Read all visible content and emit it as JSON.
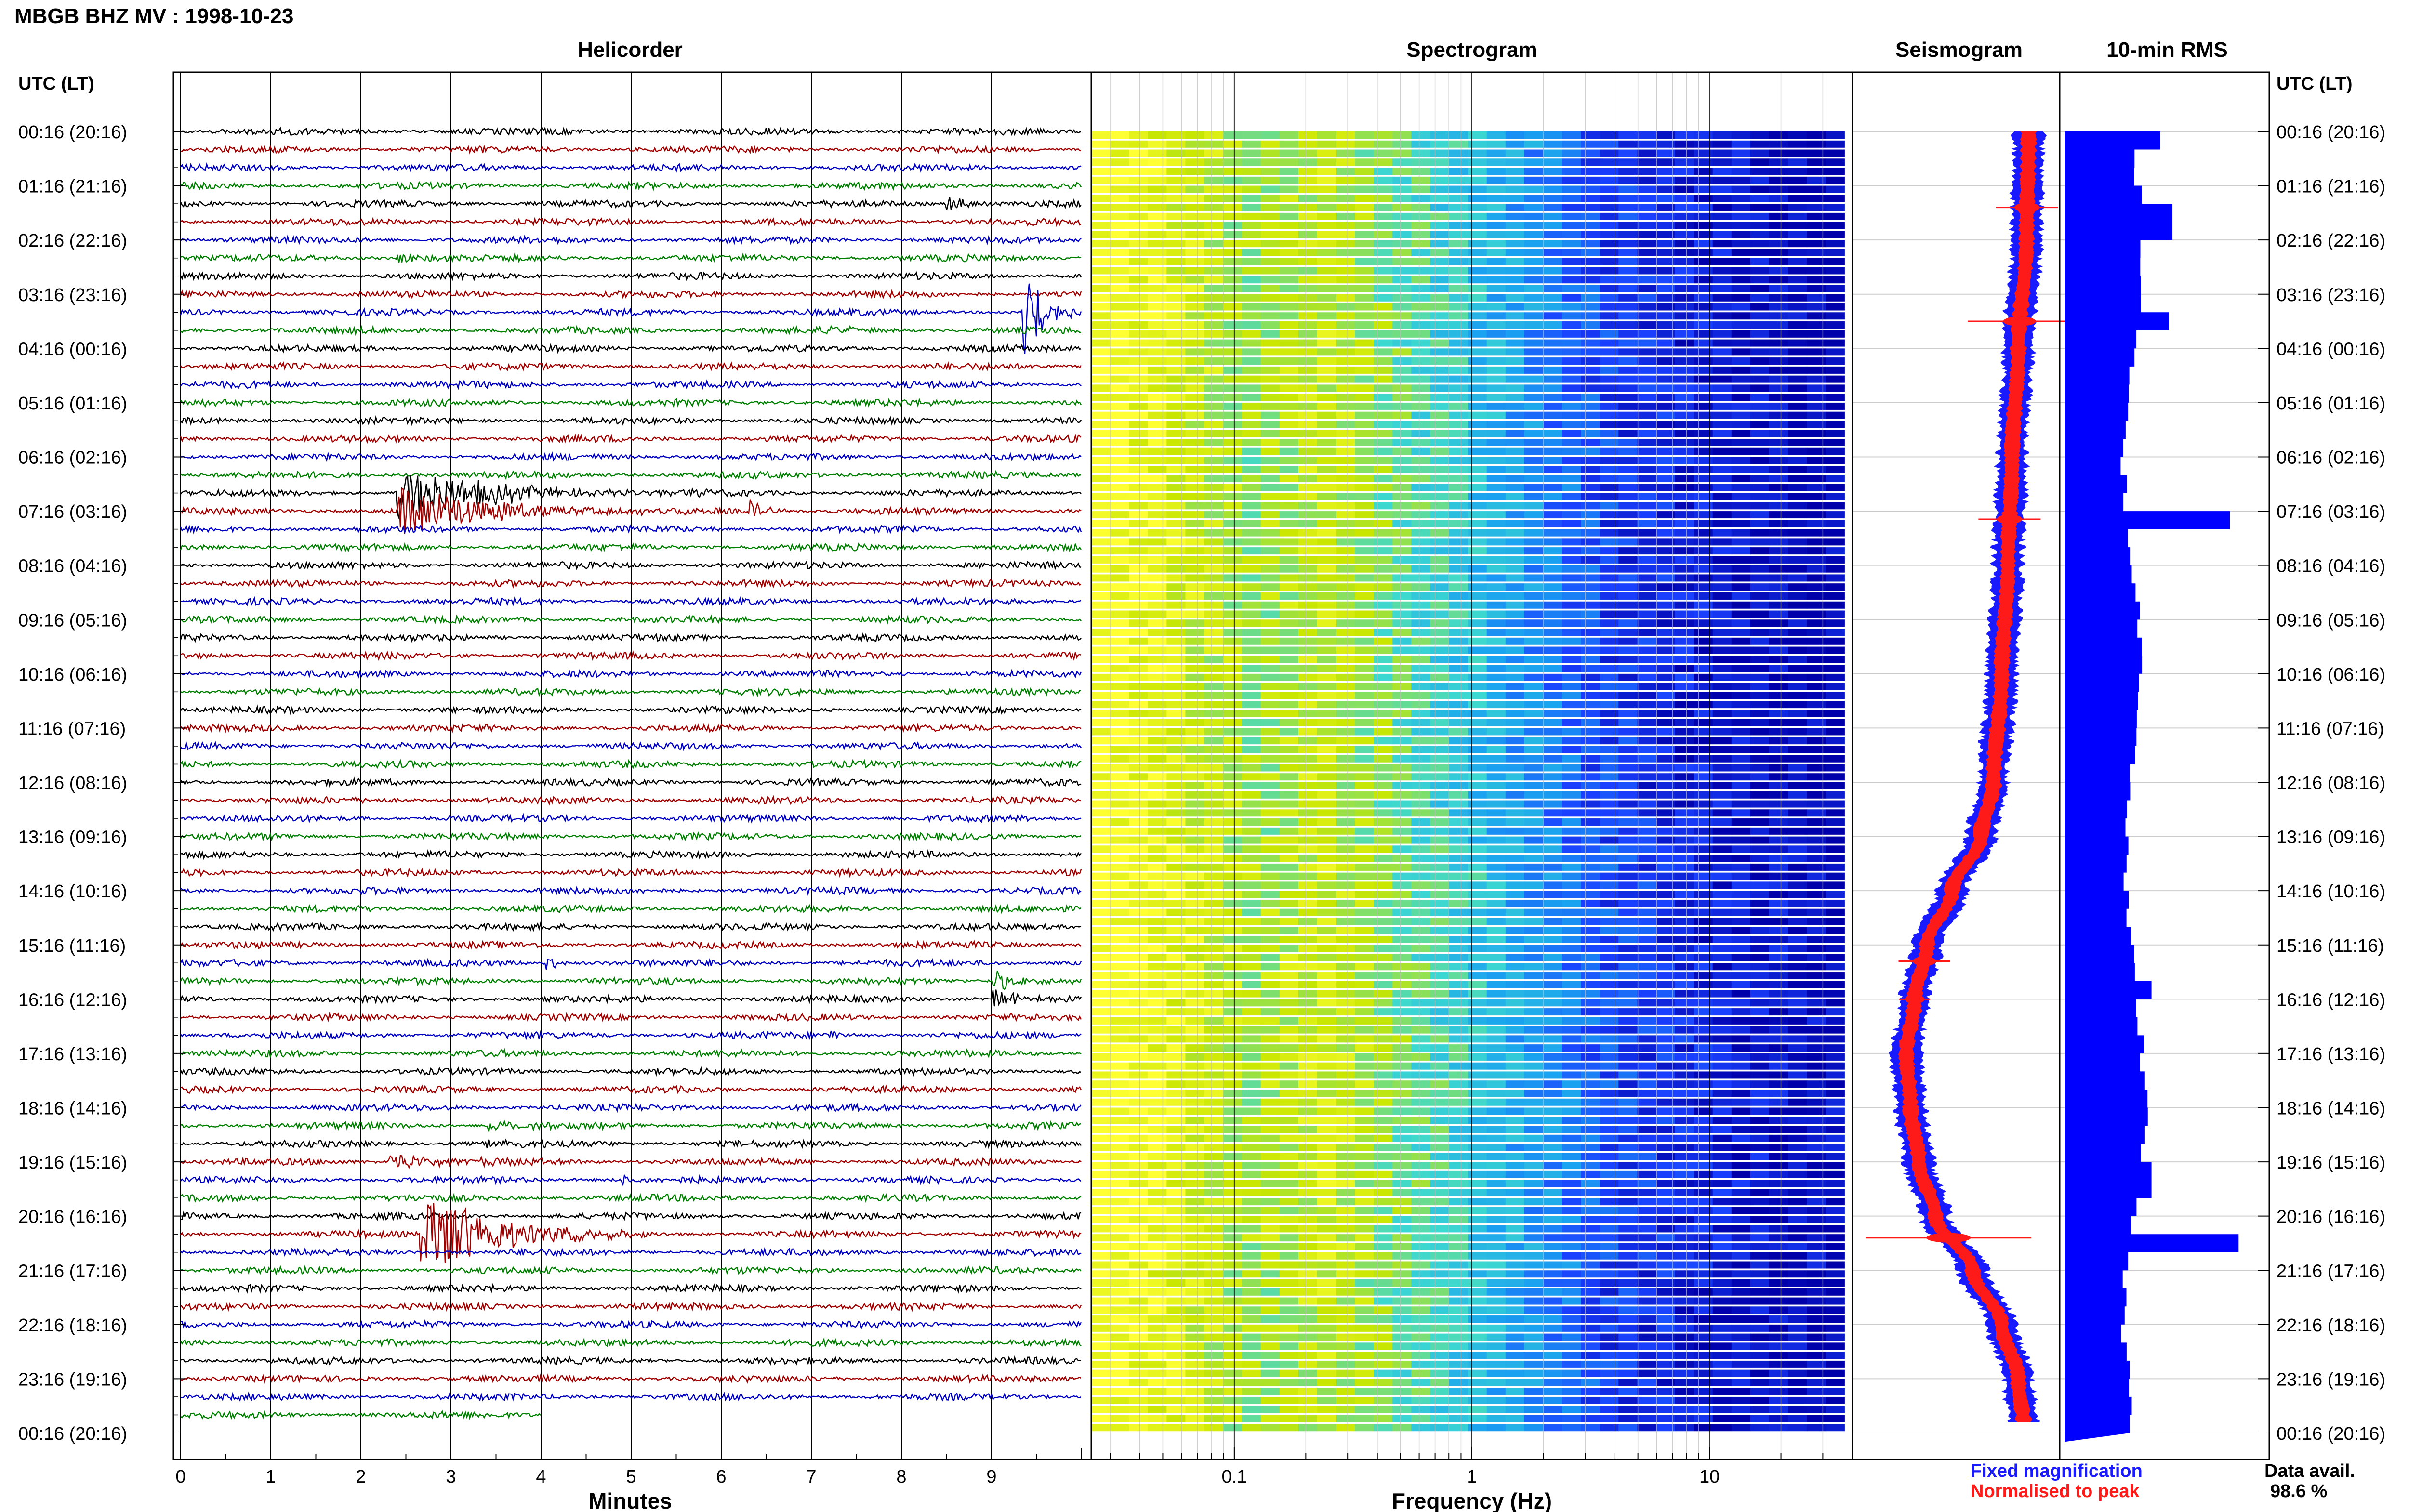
{
  "chart_data": {
    "type": "helicorder",
    "title": "MBGB BHZ MV : 1998-10-23",
    "time_axis_label": "UTC (LT)",
    "time_labels": [
      "00:16 (20:16)",
      "01:16 (21:16)",
      "02:16 (22:16)",
      "03:16 (23:16)",
      "04:16 (00:16)",
      "05:16 (01:16)",
      "06:16 (02:16)",
      "07:16 (03:16)",
      "08:16 (04:16)",
      "09:16 (05:16)",
      "10:16 (06:16)",
      "11:16 (07:16)",
      "12:16 (08:16)",
      "13:16 (09:16)",
      "14:16 (10:16)",
      "15:16 (11:16)",
      "16:16 (12:16)",
      "17:16 (13:16)",
      "18:16 (14:16)",
      "19:16 (15:16)",
      "20:16 (16:16)",
      "21:16 (17:16)",
      "22:16 (18:16)",
      "23:16 (19:16)",
      "00:16 (20:16)"
    ],
    "panels": {
      "helicorder": {
        "title": "Helicorder",
        "xlabel": "Minutes",
        "xticks": [
          0,
          1,
          2,
          3,
          4,
          5,
          6,
          7,
          8,
          9
        ],
        "xlim": [
          0,
          10
        ],
        "trace_colors": [
          "#000000",
          "#a00000",
          "#0000c0",
          "#008000"
        ],
        "events": [
          {
            "hour": 1.45,
            "minute": 8.5,
            "amp": 0.5,
            "dur": 0.7,
            "color": "#a00000"
          },
          {
            "hour": 2.45,
            "minute": 2.4,
            "amp": 0.35,
            "dur": 1.0,
            "color": "#008000"
          },
          {
            "hour": 3.3,
            "minute": 9.35,
            "amp": 2.8,
            "dur": 0.7,
            "color": "#000000"
          },
          {
            "hour": 3.67,
            "minute": 7.2,
            "amp": 0.3,
            "dur": 0.5,
            "color": "#0000c0"
          },
          {
            "hour": 6.83,
            "minute": 2.4,
            "amp": 1.3,
            "dur": 3.6,
            "color": "#a00000"
          },
          {
            "hour": 7.15,
            "minute": 6.3,
            "amp": 0.6,
            "dur": 0.6,
            "color": "#008000"
          },
          {
            "hour": 15.33,
            "minute": 4.05,
            "amp": 1.0,
            "dur": 0.3,
            "color": "#000000"
          },
          {
            "hour": 15.83,
            "minute": 9.0,
            "amp": 0.7,
            "dur": 0.8,
            "color": "#008000"
          },
          {
            "hour": 16.67,
            "minute": 7.2,
            "amp": 0.3,
            "dur": 0.4,
            "color": "#0000c0"
          },
          {
            "hour": 18.5,
            "minute": 3.4,
            "amp": 0.3,
            "dur": 1.5,
            "color": "#0000c0"
          },
          {
            "hour": 19.0,
            "minute": 2.3,
            "amp": 0.5,
            "dur": 2.0,
            "color": "#008000"
          },
          {
            "hour": 19.17,
            "minute": 4.9,
            "amp": 0.7,
            "dur": 0.2,
            "color": "#000000"
          },
          {
            "hour": 20.17,
            "minute": 2.65,
            "amp": 2.5,
            "dur": 2.6,
            "color": "#0000c0"
          }
        ],
        "last_row_end_minute": 4.0
      },
      "spectrogram": {
        "title": "Spectrogram",
        "xlabel": "Frequency (Hz)",
        "xscale": "log",
        "xlim": [
          0.025,
          40
        ],
        "xticks": [
          0.1,
          1,
          10
        ],
        "xtick_labels": [
          "0.1",
          "1",
          "10"
        ],
        "color_scale": [
          "#ffff33",
          "#c8e600",
          "#3cd8d0",
          "#1aa2f0",
          "#1a40ff",
          "#0000aa"
        ]
      },
      "seismogram": {
        "title": "Seismogram",
        "legend": [
          {
            "label": "Fixed magnification",
            "color": "#1a1aff"
          },
          {
            "label": "Normalised to peak",
            "color": "#ff1a1a"
          }
        ],
        "offsets_by_hour": [
          [
            0,
            0.85
          ],
          [
            2,
            0.84
          ],
          [
            4,
            0.8
          ],
          [
            6,
            0.77
          ],
          [
            8,
            0.75
          ],
          [
            10,
            0.72
          ],
          [
            12,
            0.68
          ],
          [
            13,
            0.62
          ],
          [
            14,
            0.48
          ],
          [
            15,
            0.36
          ],
          [
            16,
            0.3
          ],
          [
            17,
            0.26
          ],
          [
            18,
            0.28
          ],
          [
            19,
            0.32
          ],
          [
            20,
            0.4
          ],
          [
            21,
            0.58
          ],
          [
            22,
            0.72
          ],
          [
            23,
            0.8
          ],
          [
            24,
            0.83
          ]
        ],
        "spikes": [
          {
            "hour": 1.4,
            "size": 0.3
          },
          {
            "hour": 3.5,
            "size": 0.5
          },
          {
            "hour": 7.15,
            "size": 0.3
          },
          {
            "hour": 15.3,
            "size": 0.25
          },
          {
            "hour": 16.0,
            "size": 0.15
          },
          {
            "hour": 20.4,
            "size": 0.8
          }
        ]
      },
      "rms": {
        "title": "10-min RMS",
        "base_level": 0.5,
        "peaks": [
          {
            "hour": 0.0,
            "value": 0.55
          },
          {
            "hour": 1.5,
            "value": 0.62
          },
          {
            "hour": 3.4,
            "value": 0.6
          },
          {
            "hour": 7.0,
            "value": 0.95
          },
          {
            "hour": 15.8,
            "value": 0.5
          },
          {
            "hour": 19.17,
            "value": 0.5
          },
          {
            "hour": 20.33,
            "value": 1.0
          }
        ],
        "data_end_hour": 23.83
      }
    },
    "legend": {
      "fixed": "Fixed magnification",
      "normalised": "Normalised to peak"
    },
    "availability": {
      "label": "Data avail.",
      "value": "98.6 %"
    },
    "colors": {
      "blue": "#1a1aff",
      "red": "#ff1a1a",
      "rms": "#0000ff"
    }
  }
}
